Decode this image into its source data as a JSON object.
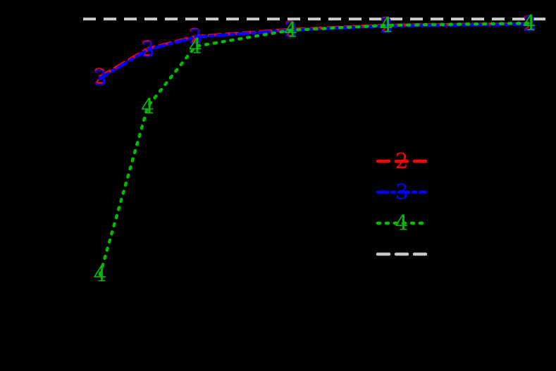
{
  "chart_data": {
    "type": "line",
    "title": "",
    "xlabel": "",
    "ylabel": "",
    "x": [
      1,
      2,
      3,
      5,
      7,
      10
    ],
    "xlim": [
      0.5,
      10.5
    ],
    "ylim": [
      0.0,
      1.05
    ],
    "grid": false,
    "legend_position": "center right",
    "background": "#000000",
    "reference_line": {
      "y": 1.0,
      "color": "#c8c8c8",
      "style": "dashed",
      "label": ""
    },
    "series": [
      {
        "name": "2",
        "marker": "2",
        "color": "#ff0000",
        "style": "dashed",
        "values": [
          0.835,
          0.915,
          0.95,
          0.97,
          0.982,
          0.986
        ]
      },
      {
        "name": "3",
        "marker": "3",
        "color": "#0000ff",
        "style": "dashdot",
        "values": [
          0.83,
          0.912,
          0.948,
          0.968,
          0.98,
          0.985
        ]
      },
      {
        "name": "4",
        "marker": "4",
        "color": "#00bb00",
        "style": "dotted",
        "values": [
          0.27,
          0.75,
          0.922,
          0.968,
          0.982,
          0.988
        ]
      }
    ]
  },
  "legend": {
    "items": [
      {
        "marker": "2",
        "color": "#ff0000",
        "style": "dashed"
      },
      {
        "marker": "3",
        "color": "#0000ff",
        "style": "dashdot"
      },
      {
        "marker": "4",
        "color": "#00bb00",
        "style": "dotted"
      },
      {
        "marker": "",
        "color": "#c8c8c8",
        "style": "dashed"
      }
    ]
  }
}
